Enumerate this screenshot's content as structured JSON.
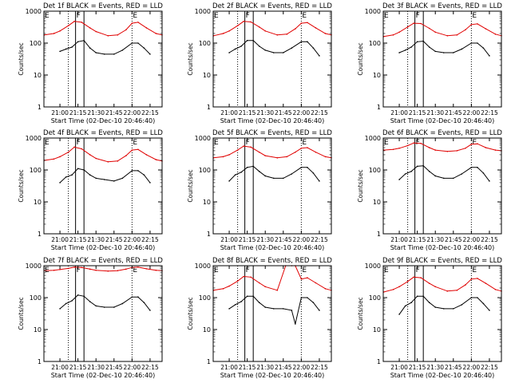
{
  "figure": {
    "xtick_labels": [
      "21:00",
      "21:15",
      "21:30",
      "21:45",
      "22:00",
      "22:15"
    ],
    "ytick_labels": [
      "1",
      "10",
      "100",
      "1000"
    ],
    "ylabel": "Counts/sec",
    "xlabel": "Start Time (02-Dec-10 20:46:40)",
    "marker_labels": [
      "E",
      "F",
      "E"
    ],
    "colors": {
      "events": "#000000",
      "lld": "#e00000"
    }
  },
  "chart_data": [
    {
      "type": "line",
      "title": "Det 1f BLACK = Events, RED = LLD",
      "xlabel": "Start Time (02-Dec-10 20:46:40)",
      "ylabel": "Counts/sec",
      "y_scale": "log",
      "ylim": [
        1,
        1000
      ],
      "xlim": [
        "20:46:40",
        "22:25"
      ],
      "vlines": [
        "21:07",
        "21:13",
        "21:20",
        "22:00"
      ],
      "series": [
        {
          "name": "Events",
          "x": [
            "21:00",
            "21:05",
            "21:10",
            "21:15",
            "21:20",
            "21:25",
            "21:30",
            "21:37",
            "21:45",
            "21:52",
            "22:00",
            "22:05",
            "22:10",
            "22:15"
          ],
          "y": [
            55,
            65,
            75,
            110,
            120,
            70,
            50,
            45,
            45,
            60,
            100,
            100,
            70,
            45
          ]
        },
        {
          "name": "LLD",
          "x": [
            "20:47",
            "20:55",
            "21:00",
            "21:07",
            "21:12",
            "21:18",
            "21:25",
            "21:30",
            "21:40",
            "21:48",
            "21:55",
            "22:00",
            "22:05",
            "22:12",
            "22:20",
            "22:25"
          ],
          "y": [
            180,
            200,
            240,
            350,
            480,
            450,
            300,
            230,
            170,
            180,
            260,
            420,
            450,
            300,
            200,
            180
          ]
        }
      ]
    },
    {
      "type": "line",
      "title": "Det 2f BLACK = Events, RED = LLD",
      "xlabel": "Start Time (02-Dec-10 20:46:40)",
      "ylabel": "Counts/sec",
      "y_scale": "log",
      "ylim": [
        1,
        1000
      ],
      "xlim": [
        "20:46:40",
        "22:25"
      ],
      "vlines": [
        "21:07",
        "21:13",
        "21:20",
        "22:00"
      ],
      "series": [
        {
          "name": "Events",
          "x": [
            "21:00",
            "21:05",
            "21:10",
            "21:15",
            "21:20",
            "21:25",
            "21:30",
            "21:37",
            "21:45",
            "21:52",
            "22:00",
            "22:05",
            "22:10",
            "22:15"
          ],
          "y": [
            50,
            65,
            80,
            120,
            120,
            80,
            60,
            50,
            50,
            70,
            110,
            110,
            70,
            40
          ]
        },
        {
          "name": "LLD",
          "x": [
            "20:47",
            "20:55",
            "21:00",
            "21:07",
            "21:12",
            "21:18",
            "21:25",
            "21:30",
            "21:40",
            "21:48",
            "21:55",
            "22:00",
            "22:05",
            "22:12",
            "22:20",
            "22:25"
          ],
          "y": [
            170,
            200,
            240,
            350,
            480,
            460,
            320,
            240,
            180,
            190,
            280,
            420,
            440,
            300,
            200,
            180
          ]
        }
      ]
    },
    {
      "type": "line",
      "title": "Det 3f BLACK = Events, RED = LLD",
      "xlabel": "Start Time (02-Dec-10 20:46:40)",
      "ylabel": "Counts/sec",
      "y_scale": "log",
      "ylim": [
        1,
        1000
      ],
      "xlim": [
        "20:46:40",
        "22:25"
      ],
      "vlines": [
        "21:07",
        "21:13",
        "21:20",
        "22:00"
      ],
      "series": [
        {
          "name": "Events",
          "x": [
            "21:00",
            "21:05",
            "21:10",
            "21:15",
            "21:20",
            "21:25",
            "21:30",
            "21:37",
            "21:45",
            "21:52",
            "22:00",
            "22:05",
            "22:10",
            "22:15"
          ],
          "y": [
            50,
            60,
            75,
            110,
            115,
            75,
            55,
            50,
            50,
            65,
            100,
            100,
            70,
            40
          ]
        },
        {
          "name": "LLD",
          "x": [
            "20:47",
            "20:55",
            "21:00",
            "21:07",
            "21:12",
            "21:18",
            "21:25",
            "21:30",
            "21:40",
            "21:48",
            "21:55",
            "22:00",
            "22:05",
            "22:12",
            "22:20",
            "22:25"
          ],
          "y": [
            160,
            180,
            220,
            320,
            420,
            410,
            290,
            220,
            170,
            180,
            260,
            380,
            400,
            280,
            190,
            170
          ]
        }
      ]
    },
    {
      "type": "line",
      "title": "Det 4f BLACK = Events, RED = LLD",
      "xlabel": "Start Time (02-Dec-10 20:46:40)",
      "ylabel": "Counts/sec",
      "y_scale": "log",
      "ylim": [
        1,
        1000
      ],
      "xlim": [
        "20:46:40",
        "22:25"
      ],
      "vlines": [
        "21:07",
        "21:13",
        "21:20",
        "22:00"
      ],
      "series": [
        {
          "name": "Events",
          "x": [
            "21:00",
            "21:05",
            "21:10",
            "21:15",
            "21:20",
            "21:25",
            "21:30",
            "21:37",
            "21:45",
            "21:52",
            "22:00",
            "22:05",
            "22:10",
            "22:15"
          ],
          "y": [
            40,
            60,
            70,
            110,
            100,
            70,
            55,
            50,
            45,
            55,
            95,
            95,
            70,
            40
          ]
        },
        {
          "name": "LLD",
          "x": [
            "20:47",
            "20:55",
            "21:00",
            "21:07",
            "21:12",
            "21:18",
            "21:25",
            "21:30",
            "21:40",
            "21:48",
            "21:55",
            "22:00",
            "22:05",
            "22:12",
            "22:20",
            "22:25"
          ],
          "y": [
            200,
            220,
            260,
            360,
            520,
            460,
            300,
            230,
            180,
            190,
            280,
            420,
            440,
            300,
            210,
            190
          ]
        }
      ]
    },
    {
      "type": "line",
      "title": "Det 5f BLACK = Events, RED = LLD",
      "xlabel": "Start Time (02-Dec-10 20:46:40)",
      "ylabel": "Counts/sec",
      "y_scale": "log",
      "ylim": [
        1,
        1000
      ],
      "xlim": [
        "20:46:40",
        "22:25"
      ],
      "vlines": [
        "21:07",
        "21:13",
        "21:20",
        "22:00"
      ],
      "series": [
        {
          "name": "Events",
          "x": [
            "21:00",
            "21:05",
            "21:10",
            "21:15",
            "21:20",
            "21:25",
            "21:30",
            "21:37",
            "21:45",
            "21:52",
            "22:00",
            "22:05",
            "22:10",
            "22:15"
          ],
          "y": [
            45,
            70,
            85,
            120,
            130,
            90,
            65,
            55,
            55,
            75,
            120,
            120,
            80,
            45
          ]
        },
        {
          "name": "LLD",
          "x": [
            "20:47",
            "20:55",
            "21:00",
            "21:07",
            "21:12",
            "21:18",
            "21:25",
            "21:30",
            "21:40",
            "21:48",
            "21:55",
            "22:00",
            "22:05",
            "22:12",
            "22:20",
            "22:25"
          ],
          "y": [
            240,
            260,
            300,
            420,
            560,
            520,
            360,
            280,
            240,
            260,
            360,
            480,
            500,
            360,
            260,
            240
          ]
        }
      ]
    },
    {
      "type": "line",
      "title": "Det 6f BLACK = Events, RED = LLD",
      "xlabel": "Start Time (02-Dec-10 20:46:40)",
      "ylabel": "Counts/sec",
      "y_scale": "log",
      "ylim": [
        1,
        1000
      ],
      "xlim": [
        "20:46:40",
        "22:25"
      ],
      "vlines": [
        "21:07",
        "21:13",
        "21:20",
        "22:00"
      ],
      "series": [
        {
          "name": "Events",
          "x": [
            "21:00",
            "21:05",
            "21:10",
            "21:15",
            "21:20",
            "21:25",
            "21:30",
            "21:37",
            "21:45",
            "21:52",
            "22:00",
            "22:05",
            "22:10",
            "22:15"
          ],
          "y": [
            50,
            75,
            90,
            130,
            135,
            90,
            65,
            55,
            55,
            75,
            120,
            120,
            80,
            45
          ]
        },
        {
          "name": "LLD",
          "x": [
            "20:47",
            "20:55",
            "21:00",
            "21:07",
            "21:12",
            "21:18",
            "21:25",
            "21:30",
            "21:40",
            "21:48",
            "21:55",
            "22:00",
            "22:05",
            "22:12",
            "22:20",
            "22:25"
          ],
          "y": [
            420,
            440,
            480,
            580,
            700,
            680,
            500,
            420,
            380,
            400,
            480,
            640,
            660,
            500,
            420,
            400
          ]
        }
      ]
    },
    {
      "type": "line",
      "title": "Det 7f BLACK = Events, RED = LLD",
      "xlabel": "Start Time (02-Dec-10 20:46:40)",
      "ylabel": "Counts/sec",
      "y_scale": "log",
      "ylim": [
        1,
        1000
      ],
      "xlim": [
        "20:46:40",
        "22:25"
      ],
      "vlines": [
        "21:07",
        "21:13",
        "21:20",
        "22:00"
      ],
      "series": [
        {
          "name": "Events",
          "x": [
            "21:00",
            "21:05",
            "21:10",
            "21:15",
            "21:20",
            "21:25",
            "21:30",
            "21:37",
            "21:45",
            "21:52",
            "22:00",
            "22:05",
            "22:10",
            "22:15"
          ],
          "y": [
            45,
            65,
            80,
            120,
            110,
            75,
            55,
            50,
            50,
            65,
            105,
            105,
            70,
            40
          ]
        },
        {
          "name": "LLD",
          "x": [
            "20:47",
            "20:55",
            "21:00",
            "21:07",
            "21:12",
            "21:18",
            "21:25",
            "21:30",
            "21:40",
            "21:48",
            "21:55",
            "22:00",
            "22:05",
            "22:12",
            "22:20",
            "22:25"
          ],
          "y": [
            700,
            720,
            760,
            820,
            900,
            880,
            780,
            720,
            680,
            700,
            780,
            880,
            900,
            800,
            720,
            700
          ]
        }
      ]
    },
    {
      "type": "line",
      "title": "Det 8f BLACK = Events, RED = LLD",
      "xlabel": "Start Time (02-Dec-10 20:46:40)",
      "ylabel": "Counts/sec",
      "y_scale": "log",
      "ylim": [
        1,
        1000
      ],
      "xlim": [
        "20:46:40",
        "22:25"
      ],
      "vlines": [
        "21:07",
        "21:13",
        "21:20",
        "22:00"
      ],
      "series": [
        {
          "name": "Events",
          "x": [
            "21:00",
            "21:05",
            "21:10",
            "21:15",
            "21:20",
            "21:25",
            "21:30",
            "21:37",
            "21:45",
            "21:52",
            "21:55",
            "22:00",
            "22:05",
            "22:10",
            "22:15"
          ],
          "y": [
            45,
            60,
            75,
            110,
            110,
            70,
            50,
            45,
            45,
            40,
            15,
            100,
            100,
            70,
            40
          ]
        },
        {
          "name": "LLD",
          "x": [
            "20:47",
            "20:55",
            "21:00",
            "21:07",
            "21:12",
            "21:18",
            "21:25",
            "21:30",
            "21:40",
            "21:47",
            "21:52",
            "21:55",
            "22:00",
            "22:05",
            "22:12",
            "22:20",
            "22:25"
          ],
          "y": [
            170,
            190,
            230,
            330,
            460,
            440,
            290,
            220,
            170,
            1000,
            1000,
            1000,
            380,
            420,
            290,
            190,
            170
          ]
        }
      ]
    },
    {
      "type": "line",
      "title": "Det 9f BLACK = Events, RED = LLD",
      "xlabel": "Start Time (02-Dec-10 20:46:40)",
      "ylabel": "Counts/sec",
      "y_scale": "log",
      "ylim": [
        1,
        1000
      ],
      "xlim": [
        "20:46:40",
        "22:25"
      ],
      "vlines": [
        "21:07",
        "21:13",
        "21:20",
        "22:00"
      ],
      "series": [
        {
          "name": "Events",
          "x": [
            "21:00",
            "21:05",
            "21:10",
            "21:15",
            "21:20",
            "21:25",
            "21:30",
            "21:37",
            "21:45",
            "21:52",
            "22:00",
            "22:05",
            "22:10",
            "22:15"
          ],
          "y": [
            30,
            55,
            70,
            110,
            110,
            70,
            50,
            45,
            45,
            60,
            100,
            100,
            65,
            40
          ]
        },
        {
          "name": "LLD",
          "x": [
            "20:47",
            "20:55",
            "21:00",
            "21:07",
            "21:12",
            "21:18",
            "21:25",
            "21:30",
            "21:40",
            "21:48",
            "21:55",
            "22:00",
            "22:05",
            "22:12",
            "22:20",
            "22:25"
          ],
          "y": [
            150,
            180,
            220,
            320,
            440,
            420,
            280,
            220,
            160,
            170,
            250,
            380,
            400,
            280,
            180,
            160
          ]
        }
      ]
    }
  ]
}
